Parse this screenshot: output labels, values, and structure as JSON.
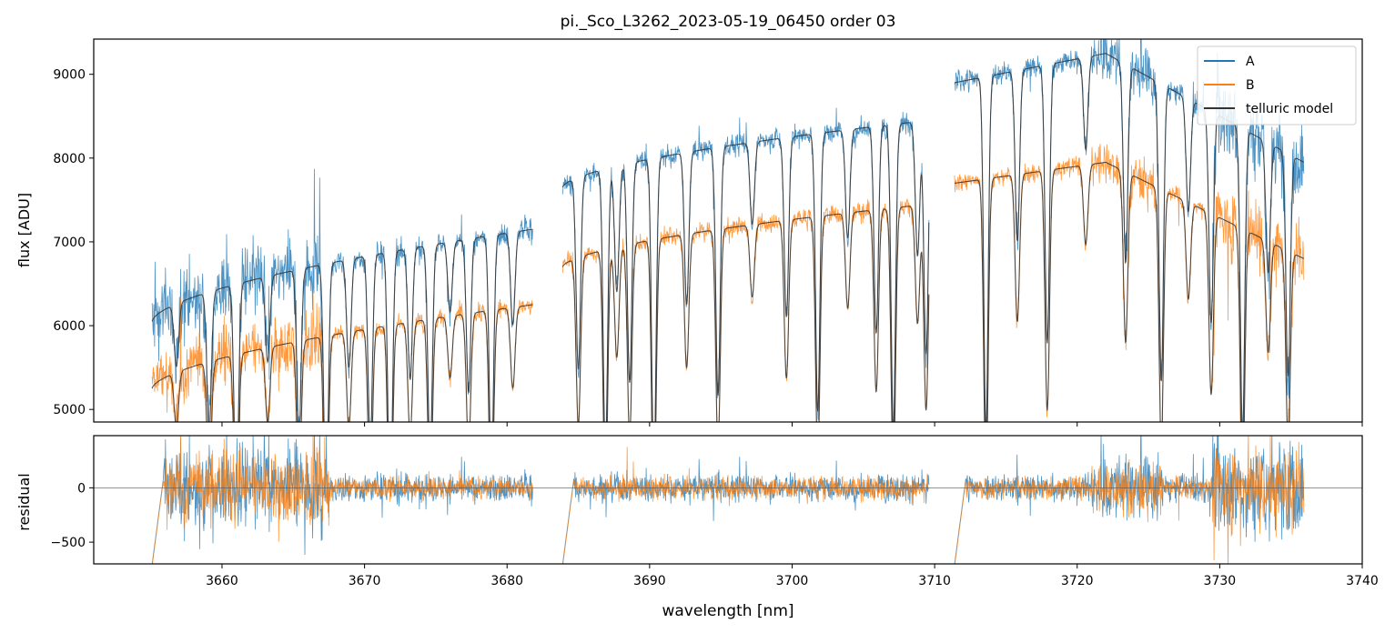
{
  "chart_data": {
    "title": "pi._Sco_L3262_2023-05-19_06450  order 03",
    "xlabel": "wavelength [nm]",
    "xlim": [
      3651,
      3740
    ],
    "xticks": [
      3660,
      3670,
      3680,
      3690,
      3700,
      3710,
      3720,
      3730,
      3740
    ],
    "colors": {
      "A": "#1f77b4",
      "B": "#ff7f0e",
      "model": "#333333"
    },
    "top": {
      "type": "line",
      "ylabel": "flux [ADU]",
      "ylim": [
        4850,
        9420
      ],
      "yticks": [
        5000,
        6000,
        7000,
        8000,
        9000
      ],
      "legend": [
        "A",
        "B",
        "telluric model"
      ],
      "legend_position": "top-right",
      "segments": [
        {
          "x": [
            3655.1,
            3681.8
          ],
          "A_start": 6050,
          "A_end": 7150,
          "B_start": 5250,
          "B_end": 6250
        },
        {
          "x": [
            3683.9,
            3709.6
          ],
          "A_start": 7650,
          "A_end": 8450,
          "B_start": 6700,
          "B_end": 7450
        },
        {
          "x": [
            3711.4,
            3735.9
          ],
          "A_start": 8900,
          "A_end": 7950,
          "B_start": 7700,
          "B_end": 6800,
          "peak_at": 3722.0,
          "A_peak": 9250,
          "B_peak": 7950
        }
      ],
      "absorption_lines": [
        3656.8,
        3659.1,
        3661.0,
        3663.2,
        3665.4,
        3667.3,
        3668.9,
        3670.4,
        3671.8,
        3673.2,
        3674.6,
        3676.0,
        3677.3,
        3678.9,
        3680.4,
        3685.0,
        3686.9,
        3687.7,
        3688.6,
        3690.3,
        3692.6,
        3694.8,
        3697.2,
        3699.6,
        3701.8,
        3703.9,
        3705.9,
        3707.1,
        3708.8,
        3709.4,
        3713.6,
        3715.8,
        3717.9,
        3720.6,
        3723.4,
        3725.9,
        3727.8,
        3729.4,
        3731.6,
        3733.4,
        3734.8
      ]
    },
    "bottom": {
      "type": "line",
      "ylabel": "residual",
      "ylim": [
        -700,
        480
      ],
      "yticks": [
        -500,
        0
      ],
      "zero_line": 0
    }
  }
}
